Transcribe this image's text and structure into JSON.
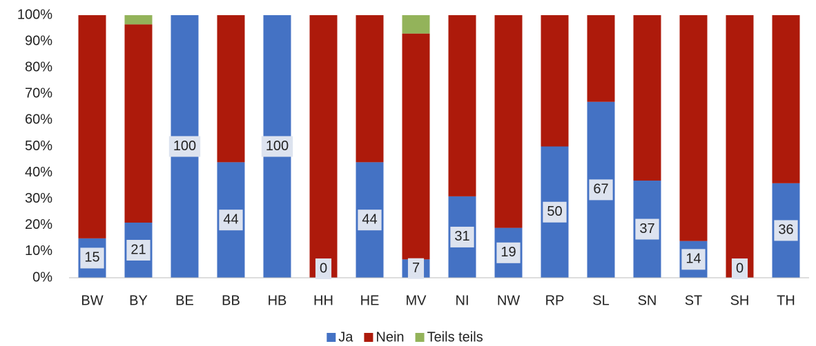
{
  "chart_data": {
    "type": "stacked_bar",
    "categories": [
      "BW",
      "BY",
      "BE",
      "BB",
      "HB",
      "HH",
      "HE",
      "MV",
      "NI",
      "NW",
      "RP",
      "SL",
      "SN",
      "ST",
      "SH",
      "TH"
    ],
    "series": [
      {
        "name": "Ja",
        "color": "#4472c4",
        "show_labels": true,
        "values": [
          15,
          21,
          100,
          44,
          100,
          0,
          44,
          7,
          31,
          19,
          50,
          67,
          37,
          14,
          0,
          36
        ]
      },
      {
        "name": "Nein",
        "color": "#ad1a0b",
        "show_labels": false,
        "values": [
          85,
          75.5,
          0,
          56,
          0,
          100,
          56,
          86,
          69,
          81,
          50,
          33,
          63,
          86,
          100,
          64
        ]
      },
      {
        "name": "Teils teils",
        "color": "#93b35a",
        "show_labels": false,
        "values": [
          0,
          3.5,
          0,
          0,
          0,
          0,
          0,
          7,
          0,
          0,
          0,
          0,
          0,
          0,
          0,
          0
        ]
      }
    ],
    "ylim": [
      0,
      100
    ],
    "yticks": [
      {
        "value": 0,
        "label": "0%"
      },
      {
        "value": 10,
        "label": "10%"
      },
      {
        "value": 20,
        "label": "20%"
      },
      {
        "value": 30,
        "label": "30%"
      },
      {
        "value": 40,
        "label": "40%"
      },
      {
        "value": 50,
        "label": "50%"
      },
      {
        "value": 60,
        "label": "60%"
      },
      {
        "value": 70,
        "label": "70%"
      },
      {
        "value": 80,
        "label": "80%"
      },
      {
        "value": 90,
        "label": "90%"
      },
      {
        "value": 100,
        "label": "100%"
      }
    ],
    "grid": false,
    "legend": "bottom"
  }
}
